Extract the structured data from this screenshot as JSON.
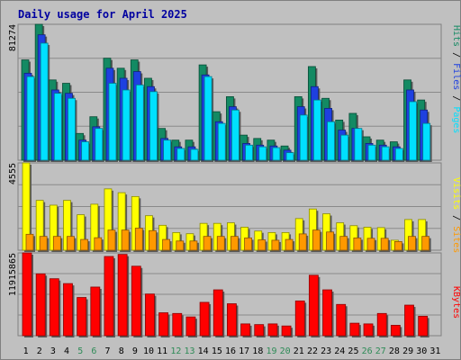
{
  "chart_data": [
    {
      "type": "bar",
      "title": "Daily usage for April 2025",
      "categories": [
        "1",
        "2",
        "3",
        "4",
        "5",
        "6",
        "7",
        "8",
        "9",
        "10",
        "11",
        "12",
        "13",
        "14",
        "15",
        "16",
        "17",
        "18",
        "19",
        "20",
        "21",
        "22",
        "23",
        "24",
        "25",
        "26",
        "27",
        "28",
        "29",
        "30",
        "31"
      ],
      "weekend_categories": [
        "5",
        "6",
        "12",
        "13",
        "19",
        "20",
        "26",
        "27"
      ],
      "ymax_label": "81274",
      "ylim": [
        0,
        81274
      ],
      "legend": [
        "Pages",
        "Files",
        "Hits"
      ],
      "colors": {
        "Pages": "#00e0ff",
        "Files": "#1e40e0",
        "Hits": "#138a63"
      },
      "series": [
        {
          "name": "Hits",
          "values": [
            60000,
            81274,
            48000,
            46000,
            16000,
            26000,
            61000,
            55000,
            60000,
            49000,
            19000,
            12000,
            12000,
            57000,
            29000,
            38000,
            15000,
            13000,
            12000,
            8500,
            38000,
            56000,
            37000,
            24000,
            28000,
            14000,
            12000,
            11000,
            48000,
            36000,
            0
          ]
        },
        {
          "name": "Files",
          "values": [
            52000,
            75000,
            42000,
            40000,
            12000,
            20000,
            55000,
            49000,
            53000,
            44000,
            13000,
            8000,
            8000,
            51000,
            23000,
            32000,
            10000,
            9000,
            8500,
            6000,
            32000,
            44000,
            31000,
            18000,
            19000,
            10000,
            9000,
            8000,
            42000,
            30000,
            0
          ]
        },
        {
          "name": "Pages",
          "values": [
            50000,
            70000,
            40000,
            37000,
            11000,
            19000,
            46000,
            42000,
            45000,
            41000,
            12000,
            7000,
            6500,
            50000,
            22000,
            30000,
            9000,
            8000,
            7500,
            4500,
            27000,
            36000,
            23000,
            15000,
            19000,
            9000,
            8000,
            7000,
            35000,
            22000,
            0
          ]
        }
      ]
    },
    {
      "type": "bar",
      "ymax_label": "4555",
      "ylim": [
        0,
        4555
      ],
      "legend": [
        "Sites",
        "Visits"
      ],
      "colors": {
        "Visits": "#ffff00",
        "Sites": "#ff9900"
      },
      "series": [
        {
          "name": "Visits",
          "values": [
            4555,
            2600,
            2350,
            2600,
            1850,
            2400,
            3200,
            3000,
            2800,
            1800,
            1300,
            920,
            860,
            1400,
            1400,
            1430,
            1200,
            1000,
            920,
            920,
            1650,
            2150,
            1900,
            1430,
            1280,
            1200,
            1180,
            520,
            1600,
            1600,
            0
          ]
        },
        {
          "name": "Sites",
          "values": [
            830,
            720,
            720,
            720,
            560,
            650,
            1050,
            1050,
            1150,
            1020,
            560,
            480,
            480,
            720,
            720,
            720,
            640,
            540,
            520,
            560,
            850,
            1050,
            950,
            720,
            640,
            620,
            620,
            450,
            720,
            720,
            0
          ]
        }
      ]
    },
    {
      "type": "bar",
      "ymax_label": "11915865",
      "ylim": [
        0,
        11915865
      ],
      "legend": [
        "KBytes"
      ],
      "colors": {
        "KBytes": "#ff0000"
      },
      "series": [
        {
          "name": "KBytes",
          "values": [
            11915865,
            8900000,
            8200000,
            7500000,
            5500000,
            7000000,
            11400000,
            11700000,
            10000000,
            6000000,
            3300000,
            3200000,
            2700000,
            4800000,
            6600000,
            4600000,
            1700000,
            1600000,
            1700000,
            1400000,
            5000000,
            8700000,
            6600000,
            4500000,
            1800000,
            1700000,
            3200000,
            1500000,
            4400000,
            2800000,
            0
          ]
        }
      ]
    }
  ]
}
